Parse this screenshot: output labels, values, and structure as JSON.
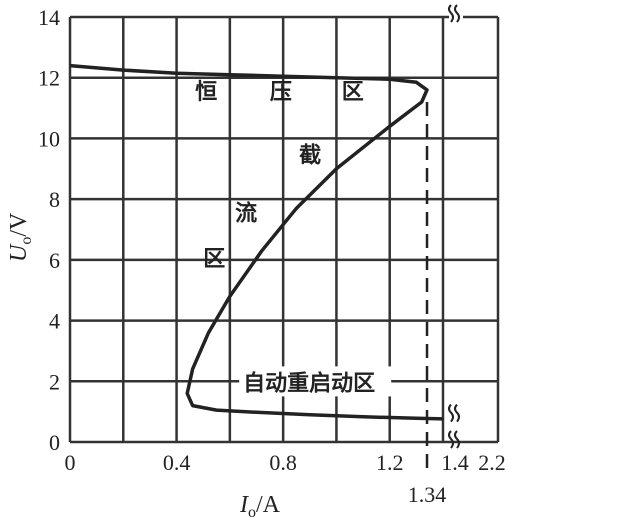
{
  "chart_data": {
    "type": "line",
    "xlabel_main": "I",
    "xlabel_sub": "o",
    "xlabel_unit": "/A",
    "ylabel_main": "U",
    "ylabel_sub": "o",
    "ylabel_unit": "/V",
    "x_ticks": [
      {
        "value": 0,
        "label": "0"
      },
      {
        "value": 0.4,
        "label": "0.4"
      },
      {
        "value": 0.8,
        "label": "0.8"
      },
      {
        "value": 1.2,
        "label": "1.2"
      },
      {
        "value": 1.4,
        "label": "1.4"
      },
      {
        "value": 2.2,
        "label": "2.2"
      }
    ],
    "x_gridlines": [
      0,
      0.2,
      0.4,
      0.6,
      0.8,
      1.0,
      1.2,
      1.4,
      2.2
    ],
    "y_ticks": [
      0,
      2,
      4,
      6,
      8,
      10,
      12,
      14
    ],
    "xlim": [
      0,
      2.2
    ],
    "ylim": [
      0,
      14
    ],
    "axis_break": "x-axis between 1.4 and 2.2",
    "grid": true,
    "marker": {
      "value": 1.34,
      "label": "1.34",
      "style": "dashed"
    },
    "series": [
      {
        "color": "#222222",
        "points": [
          [
            0,
            12.4
          ],
          [
            0.2,
            12.25
          ],
          [
            0.4,
            12.15
          ],
          [
            0.6,
            12.1
          ],
          [
            0.8,
            12.05
          ],
          [
            1.0,
            12.0
          ],
          [
            1.2,
            11.95
          ],
          [
            1.3,
            11.85
          ],
          [
            1.34,
            11.6
          ],
          [
            1.32,
            11.2
          ],
          [
            1.2,
            10.4
          ],
          [
            1.0,
            9.0
          ],
          [
            0.85,
            7.7
          ],
          [
            0.72,
            6.3
          ],
          [
            0.6,
            4.8
          ],
          [
            0.52,
            3.6
          ],
          [
            0.46,
            2.4
          ],
          [
            0.44,
            1.6
          ],
          [
            0.46,
            1.2
          ],
          [
            0.55,
            1.05
          ],
          [
            0.7,
            0.98
          ],
          [
            0.9,
            0.9
          ],
          [
            1.1,
            0.83
          ],
          [
            1.3,
            0.78
          ],
          [
            1.4,
            0.76
          ]
        ]
      }
    ],
    "annotations": [
      {
        "text": "恒",
        "x": 0.47,
        "y": 11.3
      },
      {
        "text": "压",
        "x": 0.75,
        "y": 11.3
      },
      {
        "text": "区",
        "x": 1.02,
        "y": 11.3
      },
      {
        "text": "截",
        "x": 0.86,
        "y": 9.2
      },
      {
        "text": "流",
        "x": 0.62,
        "y": 7.3
      },
      {
        "text": "区",
        "x": 0.5,
        "y": 5.8
      },
      {
        "text": "自动重启动区",
        "x": 0.65,
        "y": 1.7
      }
    ]
  }
}
